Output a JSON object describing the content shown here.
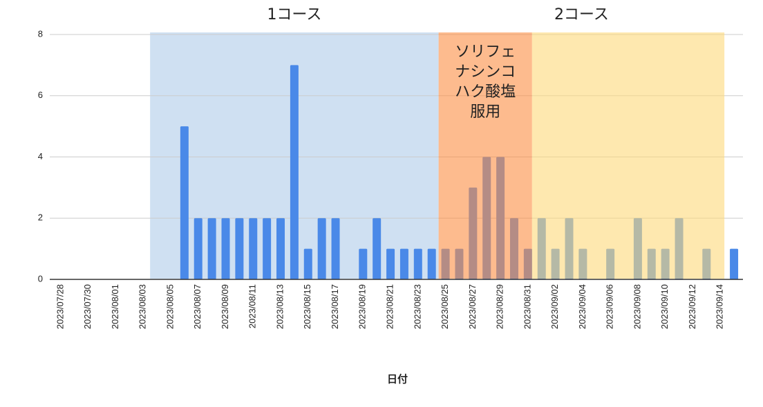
{
  "chart_data": {
    "type": "bar",
    "xlabel": "日付",
    "categories": [
      "2023/07/28",
      null,
      "2023/07/30",
      null,
      "2023/08/01",
      null,
      "2023/08/03",
      null,
      "2023/08/05",
      null,
      "2023/08/07",
      null,
      "2023/08/09",
      null,
      "2023/08/11",
      null,
      "2023/08/13",
      null,
      "2023/08/15",
      null,
      "2023/08/17",
      null,
      "2023/08/19",
      null,
      "2023/08/21",
      null,
      "2023/08/23",
      null,
      "2023/08/25",
      null,
      "2023/08/27",
      null,
      "2023/08/29",
      null,
      "2023/08/31",
      null,
      "2023/09/02",
      null,
      "2023/09/04",
      null,
      "2023/09/06",
      null,
      "2023/09/08",
      null,
      "2023/09/10",
      null,
      "2023/09/12",
      null,
      "2023/09/14",
      null
    ],
    "values": [
      0,
      0,
      0,
      0,
      0,
      0,
      0,
      0,
      0,
      5,
      2,
      2,
      2,
      2,
      2,
      2,
      2,
      7,
      1,
      2,
      2,
      0,
      1,
      2,
      1,
      1,
      1,
      1,
      1,
      1,
      3,
      4,
      4,
      2,
      1,
      2,
      1,
      2,
      1,
      0,
      1,
      0,
      2,
      1,
      1,
      2,
      0,
      1,
      0,
      1
    ],
    "color": "#4a89e8",
    "ylim": [
      0,
      8
    ],
    "yticks": [
      0,
      2,
      4,
      6,
      8
    ],
    "grid": true,
    "bands": [
      {
        "start": 6.5,
        "end": 27.5,
        "color": "#cfe0f2",
        "layer": "below"
      },
      {
        "start": 27.5,
        "end": 34.3,
        "color": "#fc8e43",
        "layer": "above",
        "lines": [
          "ソリフェ",
          "ナシンコ",
          "ハク酸塩",
          "服用"
        ]
      },
      {
        "start": 34.3,
        "end": 48.3,
        "color": "#fdd97a",
        "layer": "above"
      }
    ],
    "course_labels": [
      {
        "label": "1コース",
        "start": 6.5,
        "end": 27.5
      },
      {
        "label": "2コース",
        "start": 27.5,
        "end": 48.3
      }
    ]
  }
}
